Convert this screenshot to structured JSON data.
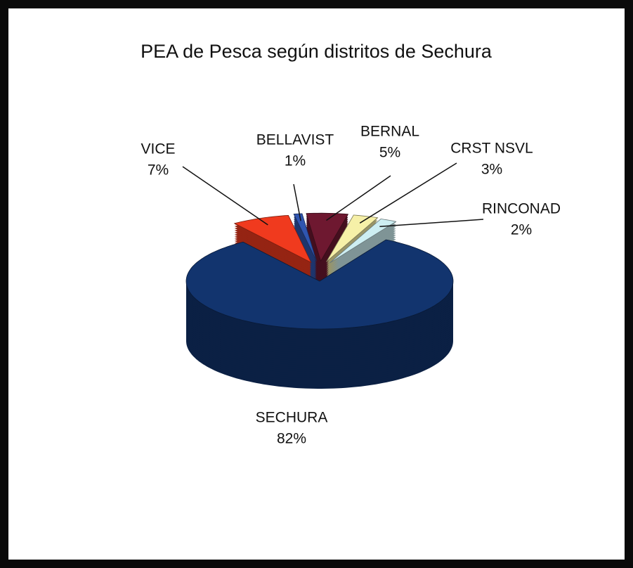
{
  "chart_data": {
    "type": "pie3d",
    "title": "PEA de Pesca según distritos de Sechura",
    "categories": [
      "VICE",
      "BELLAVIST",
      "BERNAL",
      "CRST NSVL",
      "RINCONAD",
      "SECHURA"
    ],
    "values": [
      7,
      1,
      5,
      3,
      2,
      82
    ],
    "value_labels": [
      "7%",
      "1%",
      "5%",
      "3%",
      "2%",
      "82%"
    ],
    "colors": [
      "#f03a1e",
      "#2f55b0",
      "#6e1830",
      "#f6f0a8",
      "#cdeef2",
      "#12346e"
    ]
  }
}
